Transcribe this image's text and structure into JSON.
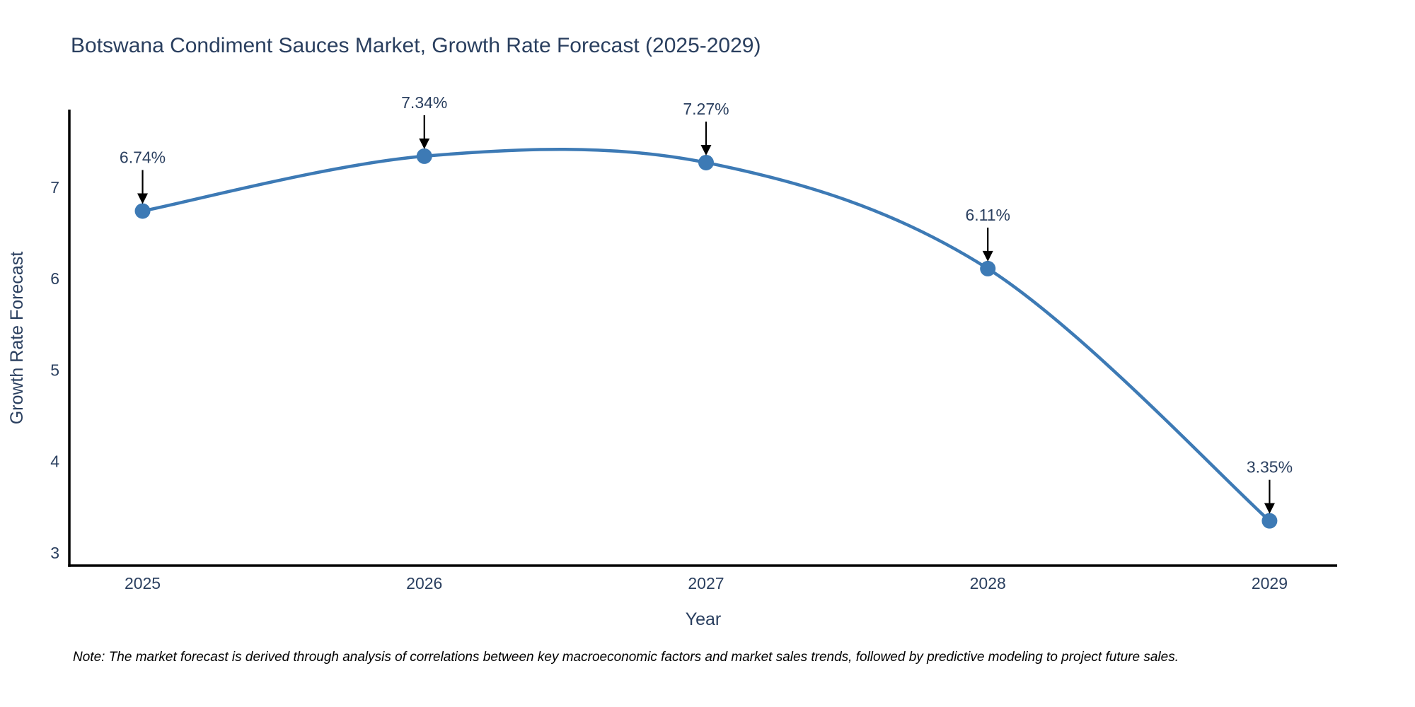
{
  "title": "Botswana Condiment Sauces Market, Growth Rate Forecast (2025-2029)",
  "chart_data": {
    "type": "line",
    "title": "Botswana Condiment Sauces Market, Growth Rate Forecast (2025-2029)",
    "xlabel": "Year",
    "ylabel": "Growth Rate Forecast",
    "x": [
      2025,
      2026,
      2027,
      2028,
      2029
    ],
    "y": [
      6.74,
      7.34,
      7.27,
      6.11,
      3.35
    ],
    "point_labels": [
      "6.74%",
      "7.34%",
      "7.27%",
      "6.11%",
      "3.35%"
    ],
    "x_ticks": [
      "2025",
      "2026",
      "2027",
      "2028",
      "2029"
    ],
    "x_tick_values": [
      2025,
      2026,
      2027,
      2028,
      2029
    ],
    "y_ticks": [
      "3",
      "4",
      "5",
      "6",
      "7"
    ],
    "y_tick_values": [
      3,
      4,
      5,
      6,
      7
    ],
    "xlim": [
      2024.74,
      2029.24
    ],
    "ylim": [
      2.86,
      7.85
    ],
    "line_shape": "spline",
    "line_color": "#3d7ab5",
    "marker_color": "#3d7ab5",
    "marker_size": 11,
    "annotation_arrow_color": "#000000",
    "axis_color": "#000000",
    "text_color": "#2a3f5f",
    "grid": false,
    "legend_position": "none"
  },
  "note": {
    "text": "Note: The market forecast is derived through analysis of correlations between key macroeconomic factors and market sales trends, followed by predictive modeling to project future sales."
  }
}
